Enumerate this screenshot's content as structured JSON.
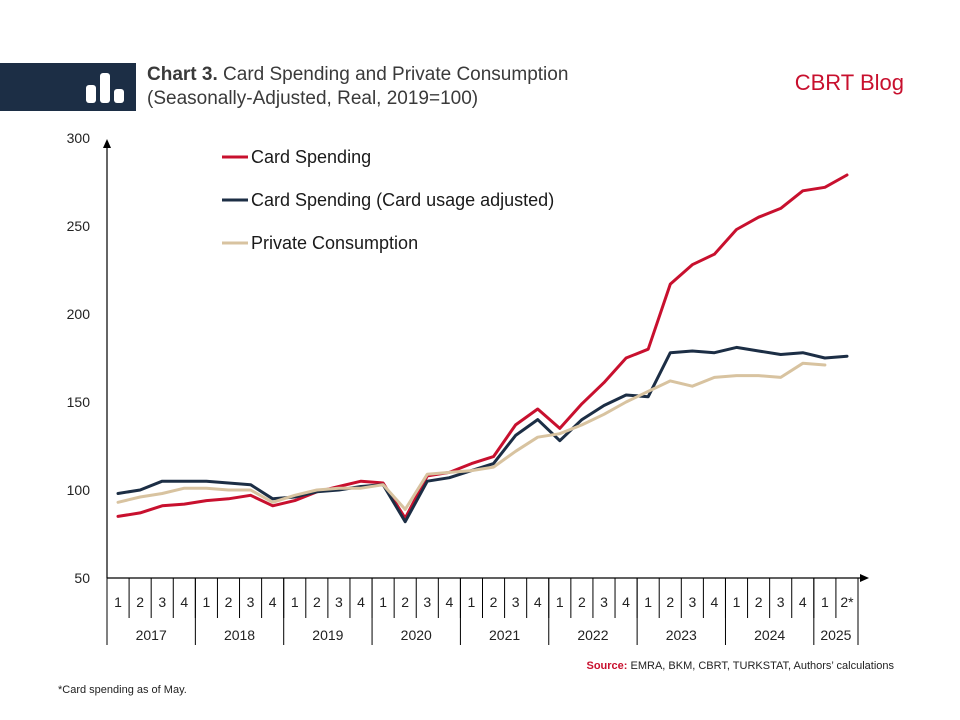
{
  "header": {
    "title_bold": "Chart 3.",
    "title_rest": " Card Spending and Private Consumption",
    "subtitle": "(Seasonally-Adjusted, Real, 2019=100)",
    "brand": "CBRT Blog"
  },
  "source": {
    "label": "Source:",
    "text": " EMRA, BKM, CBRT, TURKSTAT, Authors’ calculations"
  },
  "footnote": "*Card spending as of May.",
  "colors": {
    "card_spending": "#c8102e",
    "card_adjusted": "#1c2e45",
    "private_consumption": "#d8c3a0",
    "brand": "#c8102e",
    "logo_bg": "#1c2e45"
  },
  "chart_data": {
    "type": "line",
    "title": "Card Spending and Private Consumption",
    "ylim": [
      50,
      300
    ],
    "yticks": [
      50,
      100,
      150,
      200,
      250,
      300
    ],
    "quarter_labels": [
      "1",
      "2",
      "3",
      "4",
      "1",
      "2",
      "3",
      "4",
      "1",
      "2",
      "3",
      "4",
      "1",
      "2",
      "3",
      "4",
      "1",
      "2",
      "3",
      "4",
      "1",
      "2",
      "3",
      "4",
      "1",
      "2",
      "3",
      "4",
      "1",
      "2",
      "3",
      "4",
      "1",
      "2*"
    ],
    "years": [
      "2017",
      "2018",
      "2019",
      "2020",
      "2021",
      "2022",
      "2023",
      "2024",
      "2025"
    ],
    "legend_position": "top-left",
    "series": [
      {
        "name": "Card Spending",
        "color_key": "card_spending",
        "values": [
          85,
          87,
          91,
          92,
          94,
          95,
          97,
          91,
          94,
          99,
          102,
          105,
          104,
          84,
          108,
          110,
          115,
          119,
          137,
          146,
          135,
          149,
          161,
          175,
          180,
          217,
          228,
          234,
          248,
          255,
          260,
          270,
          272,
          279
        ]
      },
      {
        "name": "Card Spending (Card usage adjusted)",
        "color_key": "card_adjusted",
        "values": [
          98,
          100,
          105,
          105,
          105,
          104,
          103,
          95,
          96,
          99,
          100,
          102,
          103,
          82,
          105,
          107,
          111,
          115,
          131,
          140,
          128,
          140,
          148,
          154,
          153,
          178,
          179,
          178,
          181,
          179,
          177,
          178,
          175,
          176
        ]
      },
      {
        "name": "Private Consumption",
        "color_key": "private_consumption",
        "values": [
          93,
          96,
          98,
          101,
          101,
          100,
          100,
          93,
          97,
          100,
          101,
          101,
          103,
          89,
          109,
          110,
          111,
          113,
          122,
          130,
          132,
          137,
          143,
          150,
          156,
          162,
          159,
          164,
          165,
          165,
          164,
          172,
          171,
          null
        ]
      }
    ]
  }
}
